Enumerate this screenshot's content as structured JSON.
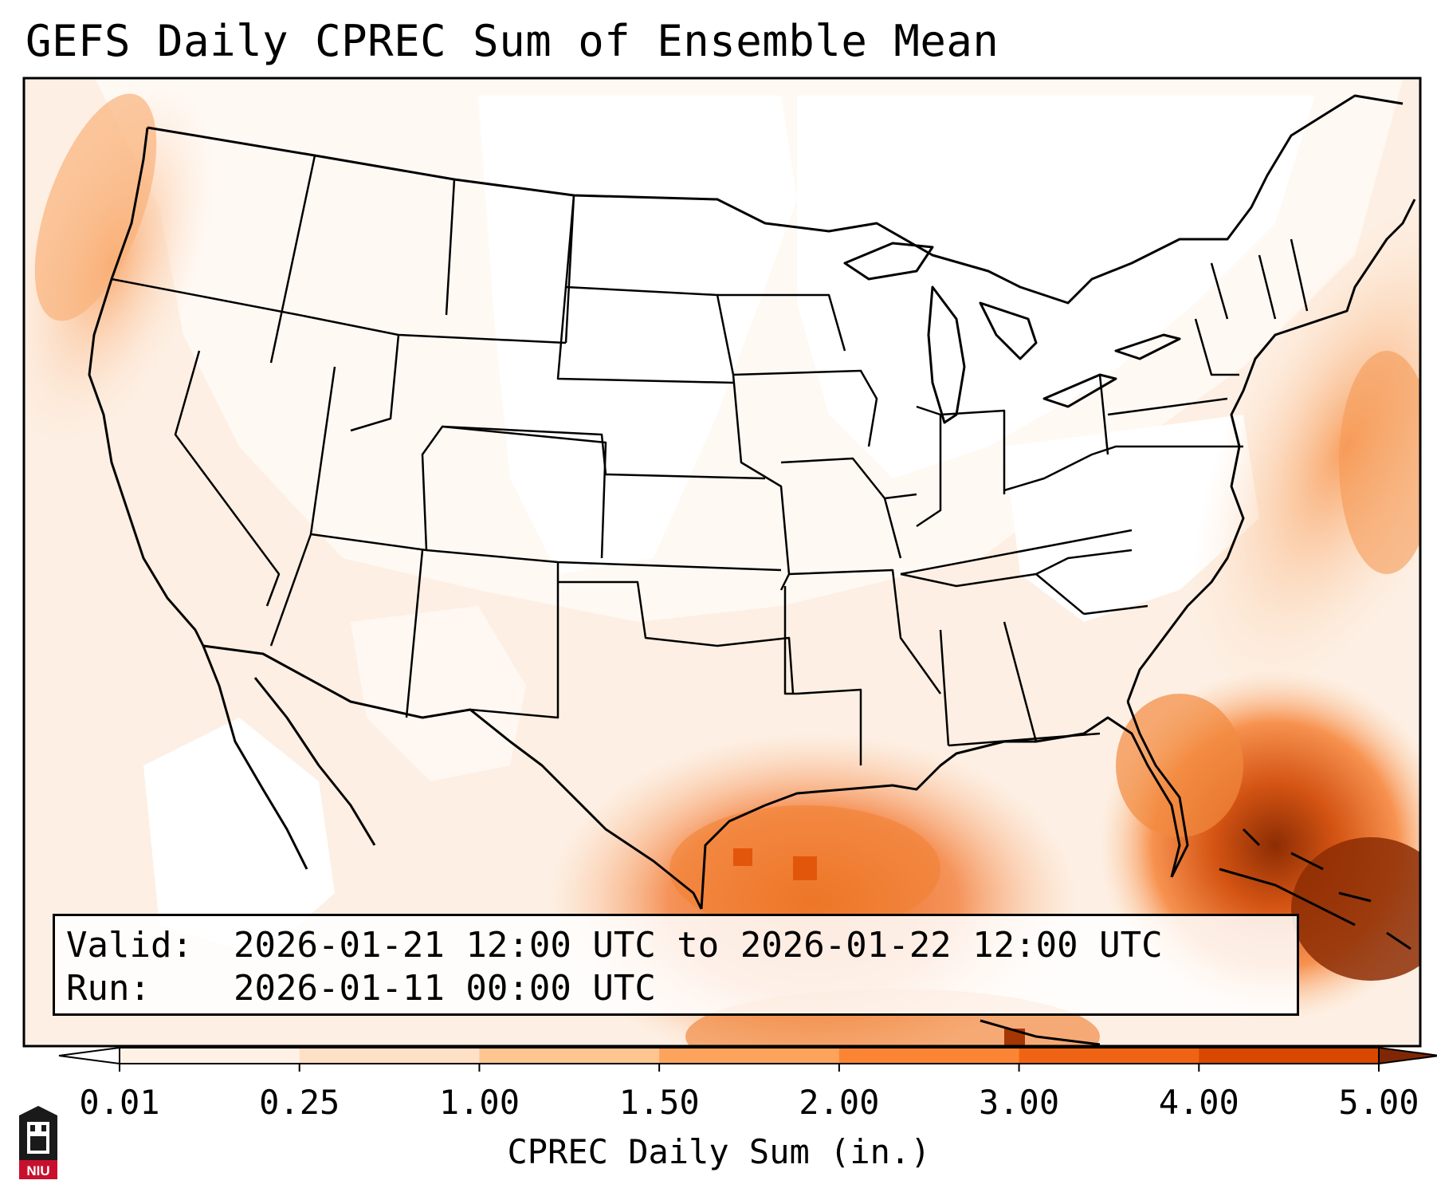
{
  "title": "GEFS Daily CPREC Sum of Ensemble Mean",
  "info": {
    "valid_key": "Valid:",
    "valid_value": "2026-01-21 12:00 UTC to 2026-01-22 12:00 UTC",
    "run_key": "Run:",
    "run_value": "2026-01-11 00:00 UTC"
  },
  "colorbar": {
    "label": "CPREC Daily Sum (in.)",
    "ticks": [
      "0.01",
      "0.25",
      "1.00",
      "1.50",
      "2.00",
      "3.00",
      "4.00",
      "5.00"
    ],
    "colors": [
      "#fff1e6",
      "#fee0c7",
      "#fdc590",
      "#fda35c",
      "#fb8534",
      "#ef6414",
      "#d84801",
      "#a63603"
    ],
    "under_color": "#ffffff",
    "over_color": "#7f2704"
  },
  "logo": {
    "icon": "niu-logo-icon",
    "text": "NIU",
    "color": "#c8102e"
  },
  "map": {
    "region": "CONUS",
    "projection": "Lambert Conformal"
  }
}
